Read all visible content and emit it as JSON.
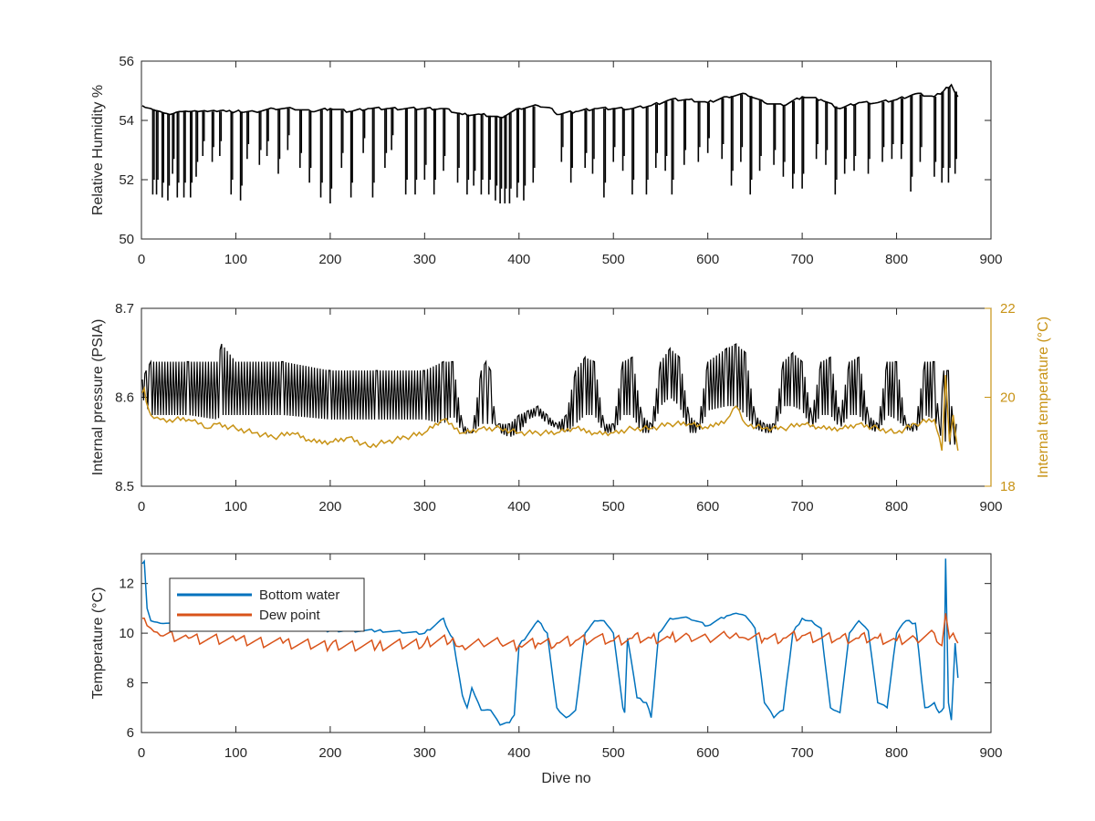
{
  "figure": {
    "background": "#ffffff"
  },
  "chart_data": [
    {
      "type": "line",
      "title": "",
      "xlabel": "",
      "ylabel": "Relative Humidity %",
      "xlim": [
        0,
        900
      ],
      "ylim": [
        50,
        56
      ],
      "xticks": [
        0,
        100,
        200,
        300,
        400,
        500,
        600,
        700,
        800,
        900
      ],
      "yticks": [
        50,
        52,
        54,
        56
      ],
      "grid": false,
      "legend": "none",
      "series": [
        {
          "color": "#000000",
          "x": [
            1,
            10,
            20,
            30,
            40,
            50,
            60,
            70,
            80,
            90,
            100,
            120,
            140,
            160,
            180,
            200,
            220,
            240,
            260,
            280,
            300,
            320,
            340,
            360,
            380,
            400,
            420,
            435,
            440,
            460,
            480,
            500,
            520,
            540,
            560,
            580,
            600,
            620,
            640,
            660,
            680,
            700,
            720,
            740,
            760,
            780,
            800,
            820,
            840,
            850,
            858,
            865
          ],
          "y": [
            54.5,
            54.4,
            54.3,
            54.2,
            54.3,
            54.3,
            54.3,
            54.3,
            54.3,
            54.3,
            54.3,
            54.3,
            54.4,
            54.4,
            54.3,
            54.4,
            54.3,
            54.4,
            54.4,
            54.4,
            54.4,
            54.4,
            54.2,
            54.2,
            54.1,
            54.4,
            54.5,
            54.4,
            54.2,
            54.3,
            54.4,
            54.4,
            54.4,
            54.5,
            54.7,
            54.7,
            54.6,
            54.8,
            54.9,
            54.6,
            54.5,
            54.8,
            54.7,
            54.4,
            54.6,
            54.6,
            54.7,
            54.9,
            54.8,
            55.0,
            55.2,
            54.8
          ]
        }
      ],
      "dips": {
        "x": [
          12,
          16,
          22,
          28,
          33,
          38,
          45,
          52,
          58,
          65,
          75,
          83,
          95,
          105,
          112,
          125,
          133,
          145,
          155,
          168,
          178,
          190,
          200,
          212,
          222,
          235,
          245,
          258,
          265,
          280,
          290,
          300,
          310,
          320,
          335,
          345,
          352,
          360,
          368,
          375,
          380,
          385,
          390,
          398,
          405,
          415,
          445,
          455,
          470,
          478,
          490,
          500,
          510,
          520,
          535,
          545,
          555,
          562,
          575,
          590,
          600,
          615,
          625,
          635,
          645,
          655,
          670,
          680,
          690,
          700,
          715,
          725,
          735,
          745,
          755,
          770,
          785,
          795,
          805,
          815,
          825,
          840,
          848,
          855,
          862
        ],
        "y": [
          51.5,
          51.5,
          51.4,
          51.3,
          52.2,
          51.4,
          51.4,
          51.4,
          52.1,
          52.8,
          52.6,
          52.8,
          51.5,
          51.3,
          52.7,
          52.5,
          52.8,
          52.2,
          53.0,
          52.4,
          51.9,
          51.4,
          51.2,
          52.4,
          51.4,
          52.9,
          51.4,
          52.4,
          53.0,
          51.5,
          51.5,
          52.0,
          51.5,
          52.3,
          51.9,
          51.5,
          51.8,
          51.5,
          51.5,
          51.3,
          51.2,
          51.2,
          51.2,
          51.4,
          51.3,
          51.9,
          52.6,
          51.9,
          52.4,
          52.2,
          51.4,
          52.6,
          52.3,
          51.5,
          51.5,
          52.4,
          52.3,
          51.5,
          52.5,
          52.6,
          52.9,
          52.7,
          51.8,
          52.6,
          51.5,
          52.3,
          52.5,
          52.1,
          51.7,
          51.7,
          52.7,
          52.5,
          51.5,
          52.2,
          52.3,
          52.2,
          52.6,
          52.7,
          52.7,
          51.6,
          52.6,
          52.1,
          51.9,
          51.9,
          52.2
        ]
      }
    },
    {
      "type": "line",
      "title": "",
      "xlabel": "",
      "ylabel": "Internal pressure (PSIA)",
      "ylabel_right": "Internal temperature (°C)",
      "xlim": [
        0,
        900
      ],
      "ylim": [
        8.5,
        8.7
      ],
      "ylim_right": [
        18,
        22
      ],
      "xticks": [
        0,
        100,
        200,
        300,
        400,
        500,
        600,
        700,
        800,
        900
      ],
      "yticks": [
        8.5,
        8.6,
        8.7
      ],
      "yticks_right": [
        18,
        20,
        22
      ],
      "right_axis_color": "#c89316",
      "grid": false,
      "legend": "none",
      "series": [
        {
          "axis": "left",
          "color": "#000000",
          "band": true,
          "x": [
            1,
            5,
            10,
            50,
            80,
            85,
            100,
            150,
            200,
            250,
            300,
            320,
            330,
            340,
            350,
            360,
            365,
            370,
            375,
            380,
            390,
            400,
            410,
            420,
            430,
            440,
            450,
            460,
            470,
            480,
            490,
            500,
            510,
            520,
            530,
            540,
            550,
            560,
            570,
            580,
            590,
            600,
            620,
            630,
            640,
            650,
            660,
            670,
            680,
            690,
            700,
            710,
            720,
            730,
            740,
            750,
            760,
            770,
            780,
            790,
            800,
            810,
            820,
            830,
            840,
            845,
            850,
            855,
            860,
            865
          ],
          "upper": [
            8.62,
            8.63,
            8.64,
            8.64,
            8.64,
            8.66,
            8.64,
            8.64,
            8.63,
            8.63,
            8.63,
            8.64,
            8.64,
            8.57,
            8.56,
            8.63,
            8.64,
            8.63,
            8.57,
            8.57,
            8.57,
            8.58,
            8.585,
            8.59,
            8.58,
            8.57,
            8.58,
            8.63,
            8.645,
            8.64,
            8.57,
            8.57,
            8.64,
            8.645,
            8.58,
            8.57,
            8.64,
            8.655,
            8.645,
            8.58,
            8.57,
            8.64,
            8.655,
            8.66,
            8.65,
            8.58,
            8.57,
            8.57,
            8.64,
            8.65,
            8.64,
            8.58,
            8.64,
            8.645,
            8.58,
            8.64,
            8.645,
            8.58,
            8.57,
            8.64,
            8.64,
            8.57,
            8.57,
            8.64,
            8.64,
            8.57,
            8.63,
            8.63,
            8.57,
            8.57
          ],
          "lower": [
            8.6,
            8.59,
            8.58,
            8.58,
            8.575,
            8.58,
            8.58,
            8.58,
            8.575,
            8.575,
            8.575,
            8.57,
            8.58,
            8.56,
            8.56,
            8.57,
            8.57,
            8.57,
            8.57,
            8.56,
            8.555,
            8.56,
            8.575,
            8.58,
            8.57,
            8.565,
            8.56,
            8.57,
            8.58,
            8.58,
            8.56,
            8.56,
            8.58,
            8.58,
            8.56,
            8.56,
            8.59,
            8.6,
            8.59,
            8.56,
            8.56,
            8.585,
            8.59,
            8.59,
            8.58,
            8.565,
            8.56,
            8.56,
            8.59,
            8.59,
            8.585,
            8.565,
            8.58,
            8.58,
            8.565,
            8.58,
            8.58,
            8.565,
            8.56,
            8.58,
            8.575,
            8.565,
            8.56,
            8.58,
            8.575,
            8.56,
            8.55,
            8.55,
            8.54,
            8.56
          ]
        },
        {
          "axis": "right",
          "color": "#c89316",
          "x": [
            1,
            3,
            5,
            8,
            10,
            20,
            30,
            50,
            60,
            70,
            80,
            100,
            120,
            140,
            160,
            180,
            200,
            220,
            240,
            260,
            280,
            300,
            320,
            340,
            360,
            380,
            400,
            420,
            440,
            460,
            480,
            500,
            520,
            540,
            560,
            580,
            600,
            620,
            630,
            640,
            660,
            680,
            700,
            720,
            740,
            760,
            780,
            800,
            820,
            840,
            848,
            852,
            856,
            860,
            865
          ],
          "y": [
            20.1,
            20.2,
            19.9,
            19.7,
            19.6,
            19.5,
            19.5,
            19.5,
            19.4,
            19.3,
            19.4,
            19.3,
            19.2,
            19.1,
            19.2,
            19.0,
            19.0,
            19.1,
            18.9,
            19.0,
            19.1,
            19.2,
            19.5,
            19.2,
            19.3,
            19.3,
            19.2,
            19.2,
            19.2,
            19.3,
            19.2,
            19.2,
            19.3,
            19.3,
            19.4,
            19.4,
            19.3,
            19.5,
            19.8,
            19.4,
            19.3,
            19.3,
            19.4,
            19.3,
            19.3,
            19.4,
            19.3,
            19.2,
            19.4,
            19.5,
            18.8,
            20.5,
            19.0,
            19.6,
            18.8
          ]
        }
      ]
    },
    {
      "type": "line",
      "title": "",
      "xlabel": "Dive no",
      "ylabel": "Temperature (°C)",
      "xlim": [
        0,
        900
      ],
      "ylim": [
        6,
        13.2
      ],
      "xticks": [
        0,
        100,
        200,
        300,
        400,
        500,
        600,
        700,
        800,
        900
      ],
      "yticks": [
        6,
        8,
        10,
        12
      ],
      "grid": false,
      "legend": "top-left",
      "series": [
        {
          "name": "Bottom water",
          "color": "#0072bd",
          "x": [
            1,
            3,
            6,
            10,
            20,
            50,
            100,
            150,
            200,
            250,
            300,
            320,
            325,
            330,
            340,
            345,
            350,
            360,
            370,
            380,
            390,
            395,
            400,
            420,
            430,
            440,
            450,
            460,
            470,
            480,
            490,
            500,
            510,
            512,
            515,
            525,
            535,
            540,
            548,
            560,
            580,
            600,
            620,
            630,
            640,
            650,
            660,
            670,
            680,
            690,
            700,
            710,
            720,
            730,
            740,
            750,
            760,
            770,
            780,
            790,
            800,
            810,
            820,
            830,
            840,
            845,
            850,
            852,
            855,
            858,
            862,
            865
          ],
          "y": [
            12.8,
            12.9,
            11.0,
            10.5,
            10.4,
            10.3,
            10.2,
            10.2,
            10.1,
            10.1,
            10.0,
            10.6,
            10.1,
            9.8,
            7.5,
            7.0,
            7.8,
            6.9,
            6.9,
            6.3,
            6.4,
            6.7,
            9.5,
            10.5,
            10.0,
            7.0,
            6.6,
            6.9,
            10.0,
            10.5,
            10.5,
            10.0,
            7.0,
            6.8,
            9.8,
            7.4,
            7.2,
            6.6,
            10.0,
            10.6,
            10.6,
            10.3,
            10.7,
            10.8,
            10.7,
            10.2,
            7.2,
            6.6,
            6.9,
            10.0,
            10.6,
            10.5,
            10.2,
            7.0,
            6.8,
            10.0,
            10.5,
            10.1,
            7.2,
            7.0,
            10.0,
            10.5,
            10.4,
            7.0,
            7.2,
            6.8,
            7.0,
            13.0,
            7.2,
            6.5,
            9.6,
            8.2
          ]
        },
        {
          "name": "Dew point",
          "color": "#d95319",
          "x": [
            1,
            3,
            6,
            10,
            20,
            50,
            100,
            150,
            200,
            250,
            300,
            330,
            340,
            360,
            380,
            400,
            420,
            440,
            460,
            480,
            500,
            520,
            540,
            560,
            580,
            600,
            620,
            630,
            640,
            660,
            680,
            700,
            720,
            740,
            760,
            780,
            800,
            820,
            840,
            848,
            852,
            856,
            860,
            865
          ],
          "y": [
            10.6,
            10.6,
            10.3,
            10.2,
            9.9,
            9.8,
            9.7,
            9.6,
            9.5,
            9.5,
            9.6,
            9.8,
            9.5,
            9.6,
            9.6,
            9.5,
            9.6,
            9.6,
            9.7,
            9.8,
            9.7,
            9.8,
            9.8,
            9.8,
            9.9,
            9.8,
            9.9,
            10.0,
            9.8,
            9.8,
            9.8,
            9.9,
            9.8,
            9.8,
            9.8,
            9.8,
            9.7,
            9.8,
            10.0,
            9.5,
            10.8,
            9.8,
            10.0,
            9.6
          ]
        }
      ]
    }
  ]
}
